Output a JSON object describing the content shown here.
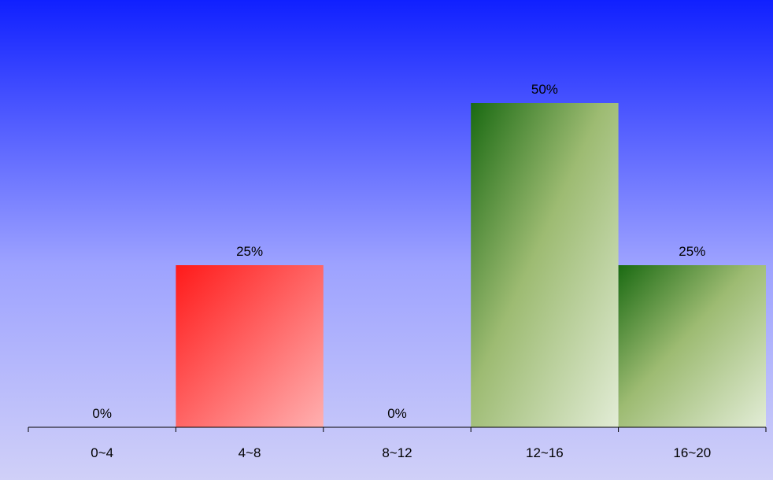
{
  "chart_data": {
    "type": "bar",
    "title": "",
    "xlabel": "",
    "ylabel": "",
    "categories": [
      "0~4",
      "4~8",
      "8~12",
      "12~16",
      "16~20"
    ],
    "values": [
      0,
      25,
      0,
      50,
      25
    ],
    "value_labels": [
      "0%",
      "25%",
      "0%",
      "50%",
      "25%"
    ],
    "ylim": [
      0,
      50
    ],
    "grid": false,
    "legend": "none",
    "bar_colors": [
      "#ff1a1a",
      "#ff1a1a",
      "#ff1a1a",
      "#1e6e14",
      "#1e6e14"
    ],
    "background_gradient": [
      "#1020ff",
      "#d0d0f8"
    ],
    "bar_gradient_end": [
      "#ffb4b4",
      "#e0ecd4"
    ]
  }
}
